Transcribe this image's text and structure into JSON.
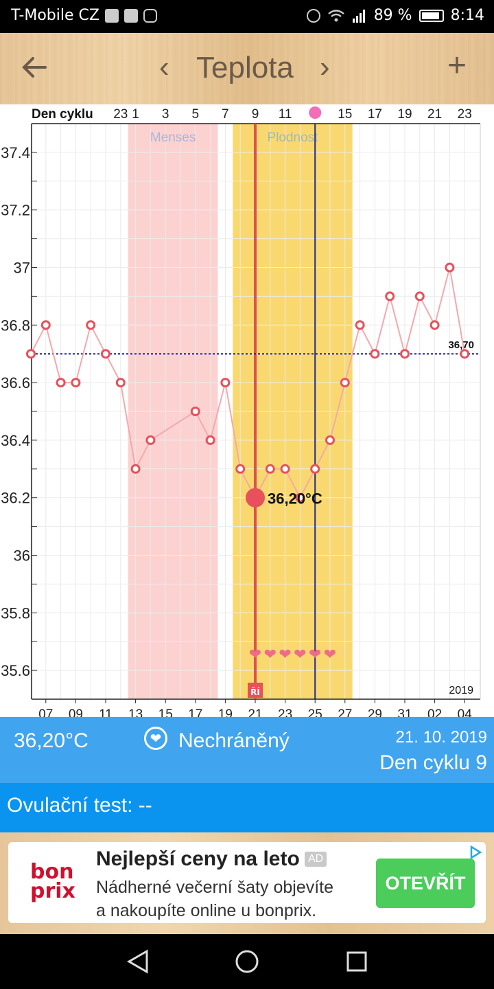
{
  "status": {
    "carrier": "T-Mobile CZ",
    "battery": "89 %",
    "time": "8:14",
    "icons_left": [
      "facebook-icon",
      "mail-icon",
      "instagram-icon"
    ],
    "icons_right": [
      "alarm-icon",
      "wifi-icon",
      "signal-icon",
      "battery-icon"
    ]
  },
  "header": {
    "back_icon": "arrow-left-icon",
    "prev": "‹",
    "title": "Teplota",
    "next": "›",
    "add": "+"
  },
  "chart_data": {
    "type": "line",
    "top_axis_label": "Den cyklu",
    "top_ticks": [
      "23",
      "1",
      "3",
      "5",
      "7",
      "9",
      "11",
      "15",
      "17",
      "19",
      "21",
      "23"
    ],
    "x_ticks": [
      "07",
      "09",
      "11",
      "13",
      "15",
      "17",
      "19",
      "21",
      "23",
      "25",
      "27",
      "29",
      "31",
      "02",
      "04"
    ],
    "y_ticks": [
      "37.4",
      "37.2",
      "37",
      "36.8",
      "36.6",
      "36.4",
      "36.2",
      "36",
      "35.8",
      "35.6"
    ],
    "ylim": [
      35.5,
      37.5
    ],
    "year_label": "2019",
    "points": [
      {
        "x": "06",
        "y": 36.7
      },
      {
        "x": "07",
        "y": 36.8
      },
      {
        "x": "08",
        "y": 36.6
      },
      {
        "x": "09",
        "y": 36.6
      },
      {
        "x": "10",
        "y": 36.8
      },
      {
        "x": "11",
        "y": 36.7
      },
      {
        "x": "12",
        "y": 36.6
      },
      {
        "x": "13",
        "y": 36.3
      },
      {
        "x": "14",
        "y": 36.4
      },
      {
        "x": "17",
        "y": 36.5
      },
      {
        "x": "18",
        "y": 36.4
      },
      {
        "x": "19",
        "y": 36.6
      },
      {
        "x": "20",
        "y": 36.3
      },
      {
        "x": "21",
        "y": 36.2
      },
      {
        "x": "22",
        "y": 36.3
      },
      {
        "x": "23",
        "y": 36.3
      },
      {
        "x": "24",
        "y": 36.2
      },
      {
        "x": "25",
        "y": 36.3
      },
      {
        "x": "26",
        "y": 36.4
      },
      {
        "x": "27",
        "y": 36.6
      },
      {
        "x": "28",
        "y": 36.8
      },
      {
        "x": "29",
        "y": 36.7
      },
      {
        "x": "30",
        "y": 36.9
      },
      {
        "x": "31",
        "y": 36.7
      },
      {
        "x": "01",
        "y": 36.9
      },
      {
        "x": "02",
        "y": 36.8
      },
      {
        "x": "03",
        "y": 37.0
      },
      {
        "x": "04",
        "y": 36.7
      }
    ],
    "baseline": {
      "value": 36.7,
      "label": "36,70"
    },
    "menses_band": {
      "label": "Menses",
      "from": "13",
      "to": "18"
    },
    "fertile_band": {
      "label": "Plodnost",
      "from": "20",
      "to": "27"
    },
    "selected": {
      "x": "21",
      "y": 36.2,
      "label": "36,20°C"
    },
    "ovulation": {
      "x": "25"
    },
    "hearts": {
      "from": "21",
      "to": "26",
      "glyph": "❤"
    },
    "marker_text": "ŘÍ"
  },
  "colors": {
    "series": "#e8505b",
    "series_line": "#f3a9ae",
    "menses": "#fcd2d1",
    "fertile": "#f9d96f",
    "baseline": "#1a1aa8",
    "selected_line": "#e05050",
    "ovulation_line": "#2a2a88",
    "info_bar": "#41a4ee",
    "ov_bar": "#0a94f0",
    "ad_button": "#4bcc5b"
  },
  "info": {
    "temperature": "36,20°C",
    "status": "Nechráněný",
    "heart_icon": "heart-icon",
    "date": "21. 10. 2019",
    "cycle_day": "Den cyklu 9"
  },
  "ovulation_test": "Ovulační test: --",
  "ad": {
    "logo_top": "bon",
    "logo_bottom": "prix",
    "title": "Nejlepší ceny na leto",
    "badge": "AD",
    "text_line1": "Nádherné večerní šaty objevíte",
    "text_line2": "a nakoupíte online u bonprix.",
    "button": "OTEVŘÍT",
    "adchoices_icon": "adchoices-icon"
  },
  "navbar": {
    "back_icon": "triangle-back-icon",
    "home_icon": "circle-home-icon",
    "recents_icon": "square-recents-icon"
  }
}
